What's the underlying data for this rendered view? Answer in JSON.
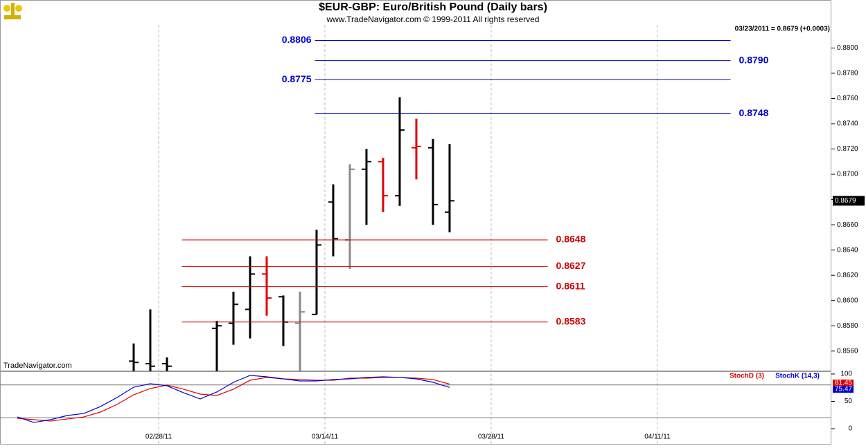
{
  "header": {
    "title": "$EUR-GBP:  Euro/British Pound  (Daily bars)",
    "subtitle": "www.TradeNavigator.com © 1999-2011 All rights reserved",
    "quote": "03/23/2011 = 0.8679 (+0.0003)",
    "watermark": "TradeNavigator.com"
  },
  "chart_data": [
    {
      "type": "ohlc",
      "x": [
        -1.5,
        -0.5,
        0.5,
        3.5,
        4.5,
        5.5,
        6.5,
        7.5,
        8.5,
        9.5,
        10.5,
        11.5,
        12.5,
        13.5,
        14.5,
        15.5,
        16.5,
        17.5
      ],
      "open": [
        0.8552,
        0.855,
        0.855,
        0.8578,
        0.8582,
        0.8593,
        0.8621,
        0.8603,
        0.8582,
        0.8589,
        0.8678,
        0.8648,
        0.8704,
        0.871,
        0.8683,
        0.8721,
        0.8721,
        0.867
      ],
      "high": [
        0.8566,
        0.8593,
        0.8555,
        0.8584,
        0.8607,
        0.8635,
        0.8635,
        0.8604,
        0.8607,
        0.8656,
        0.8692,
        0.8708,
        0.872,
        0.8713,
        0.8761,
        0.8744,
        0.8728,
        0.8724
      ],
      "low": [
        0.8538,
        0.8538,
        0.8538,
        0.8541,
        0.8565,
        0.857,
        0.8588,
        0.8564,
        0.8538,
        0.8589,
        0.8635,
        0.8625,
        0.866,
        0.867,
        0.8675,
        0.8696,
        0.866,
        0.8654
      ],
      "close": [
        0.8551,
        0.8548,
        0.8548,
        0.858,
        0.8597,
        0.8621,
        0.8602,
        0.8583,
        0.8591,
        0.8644,
        0.8649,
        0.8704,
        0.871,
        0.8683,
        0.8735,
        0.8722,
        0.8676,
        0.8679
      ],
      "colors": [
        "#000000",
        "#000000",
        "#000000",
        "#000000",
        "#000000",
        "#000000",
        "#e00000",
        "#000000",
        "#888888",
        "#000000",
        "#000000",
        "#888888",
        "#000000",
        "#e00000",
        "#000000",
        "#e00000",
        "#000000",
        "#000000"
      ],
      "levels": {
        "values": [
          0.8806,
          0.879,
          0.8775,
          0.8748,
          0.8648,
          0.8627,
          0.8611,
          0.8583
        ],
        "value_labels": [
          "0.8806",
          "0.8790",
          "0.8775",
          "0.8748",
          "0.8648",
          "0.8627",
          "0.8611",
          "0.8583"
        ],
        "colors": [
          "#0000cc",
          "#0000cc",
          "#0000cc",
          "#0000cc",
          "#cc0000",
          "#cc0000",
          "#cc0000",
          "#cc0000"
        ]
      },
      "xlim": [
        -9.54,
        40.46
      ],
      "xticks": [
        {
          "value": 0,
          "label": "02/28/11"
        },
        {
          "value": 10,
          "label": "03/14/11"
        },
        {
          "value": 20,
          "label": "03/28/11"
        },
        {
          "value": 30,
          "label": "04/11/11"
        }
      ],
      "ylim": [
        0.8544,
        0.8838
      ],
      "yticks": [
        {
          "value": 0.856,
          "label": "0.8560"
        },
        {
          "value": 0.858,
          "label": "0.8580"
        },
        {
          "value": 0.86,
          "label": "0.8600"
        },
        {
          "value": 0.862,
          "label": "0.8620"
        },
        {
          "value": 0.864,
          "label": "0.8640"
        },
        {
          "value": 0.866,
          "label": "0.8660"
        },
        {
          "value": 0.868,
          "label": "0.8680"
        },
        {
          "value": 0.87,
          "label": "0.8700"
        },
        {
          "value": 0.872,
          "label": "0.8720"
        },
        {
          "value": 0.874,
          "label": "0.8740"
        },
        {
          "value": 0.876,
          "label": "0.8760"
        },
        {
          "value": 0.878,
          "label": "0.8780"
        },
        {
          "value": 0.88,
          "label": "0.8800"
        }
      ],
      "last_label": "0.8679"
    },
    {
      "type": "line",
      "x": [
        -8.5,
        -7.5,
        -6.5,
        -5.5,
        -4.5,
        -3.5,
        -2.5,
        -1.5,
        -0.5,
        0.5,
        1.5,
        2.5,
        3.5,
        4.5,
        5.5,
        6.5,
        7.5,
        8.5,
        9.5,
        10.5,
        11.5,
        12.5,
        13.5,
        14.5,
        15.5,
        16.5,
        17.5
      ],
      "series": [
        {
          "name": "StochD (3)",
          "color": "#dd0000",
          "values": [
            19,
            16.5,
            13.9,
            17.7,
            21.5,
            30.4,
            44.3,
            62,
            73.4,
            79.7,
            72.2,
            63.3,
            60.8,
            72.2,
            88.6,
            93.7,
            91.1,
            89.9,
            88.6,
            88.6,
            92.4,
            92.4,
            93.7,
            93.7,
            92.4,
            89.9,
            81.45
          ]
        },
        {
          "name": "StochK (14,3)",
          "color": "#0000cc",
          "values": [
            21.5,
            11.4,
            16.5,
            24.1,
            27.8,
            40.5,
            57,
            75.9,
            82.3,
            78.5,
            65.8,
            54.4,
            67.1,
            84.8,
            97.5,
            94.9,
            91.1,
            87.3,
            87.3,
            89.9,
            91.1,
            93.7,
            94.9,
            93.7,
            91.1,
            84.8,
            75.47
          ]
        }
      ],
      "ref_lines": [
        20,
        80
      ],
      "ylim": [
        -29,
        105
      ],
      "yticks": [
        0,
        50,
        100
      ]
    }
  ]
}
